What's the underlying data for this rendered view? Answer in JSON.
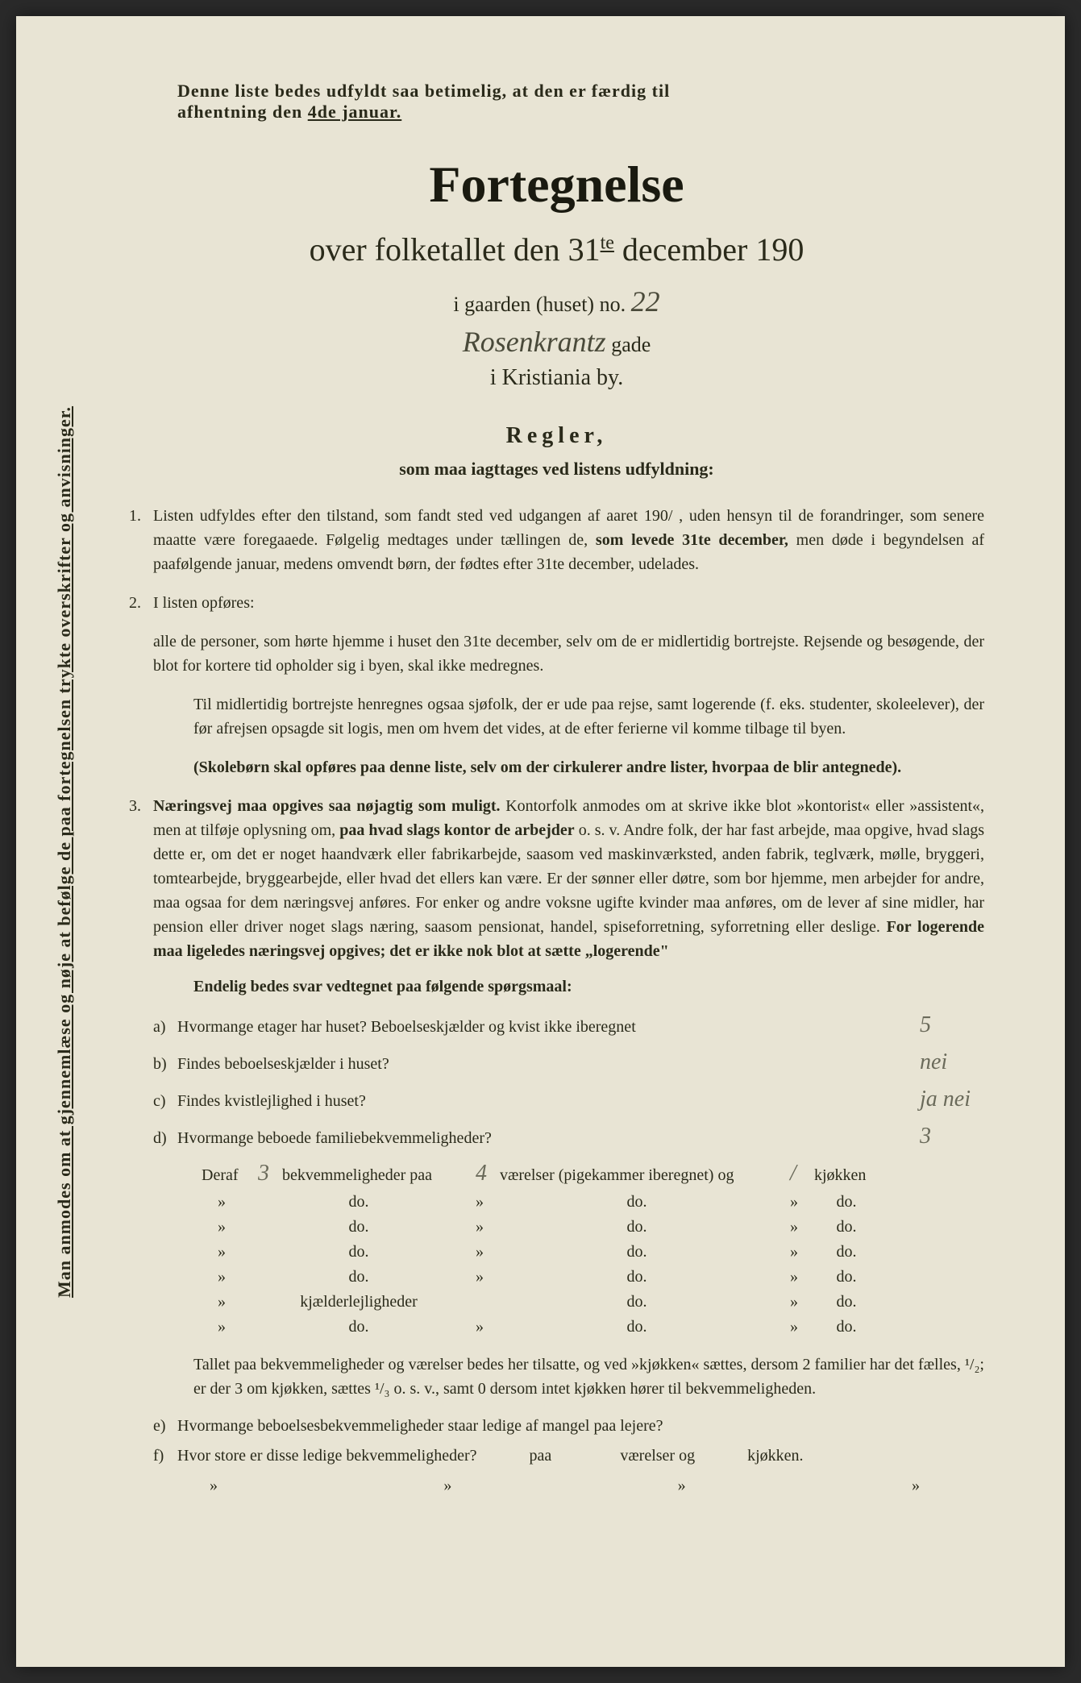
{
  "sideways": "Man anmodes om at gjennemlæse og nøje at befølge de paa fortegnelsen trykte overskrifter og anvisninger.",
  "topNotice": {
    "line1": "Denne liste bedes udfyldt saa betimelig, at den er færdig til",
    "line2a": "afhentning den ",
    "line2b": "4de januar."
  },
  "title": "Fortegnelse",
  "subtitle": {
    "prefix": "over folketallet den 31",
    "sup": "te",
    "suffix": " december 190"
  },
  "houseLine": {
    "prefix": "i gaarden (huset) no. ",
    "handwritten": "22"
  },
  "streetLine": {
    "handwritten": "Rosenkrantz",
    "suffix": " gade"
  },
  "cityLine": "i Kristiania by.",
  "rulesTitle": "Regler,",
  "rulesSubtitle": "som maa iagttages ved listens udfyldning:",
  "rules": [
    {
      "num": "1.",
      "text": "Listen udfyldes efter den tilstand, som fandt sted ved udgangen af aaret 190/ , uden hensyn til de forandringer, som senere maatte være foregaaede. Følgelig medtages under tællingen de, ",
      "bold1": "som levede 31te december,",
      "text2": " men døde i begyndelsen af paafølgende januar, medens omvendt børn, der fødtes efter 31te december, udelades."
    },
    {
      "num": "2.",
      "text": "I listen opføres:"
    }
  ],
  "rule2sub": {
    "text1": "alle de personer, ",
    "bold1": "som hørte hjemme i huset den 31te december, selv om de er midlertidig bortrejste.",
    "text2": " Rejsende og besøgende, der blot for kortere tid opholder sig i byen, skal ikke medregnes."
  },
  "rule2para2": "Til midlertidig bortrejste henregnes ogsaa sjøfolk, der er ude paa rejse, samt logerende (f. eks. studenter, skoleelever), der før afrejsen opsagde sit logis, men om hvem det vides, at de efter ferierne vil komme tilbage til byen.",
  "rule2bold": "(Skolebørn skal opføres paa denne liste, selv om der cirkulerer andre lister, hvorpaa de blir antegnede).",
  "rule3": {
    "num": "3.",
    "bold1": "Næringsvej maa opgives saa nøjagtig som muligt.",
    "text1": " Kontorfolk anmodes om at skrive ikke blot »kontorist« eller »assistent«, men at tilføje oplysning om, ",
    "bold2": "paa hvad slags kontor de arbejder",
    "text2": " o. s. v. Andre folk, der har fast arbejde, maa opgive, hvad slags dette er, om det er noget haandværk eller fabrikarbejde, saasom ved maskinværksted, anden fabrik, teglværk, mølle, bryggeri, tomtearbejde, bryggearbejde, eller hvad det ellers kan være. Er der sønner eller døtre, som bor hjemme, men arbejder for andre, maa ogsaa for dem næringsvej anføres. For enker og andre voksne ugifte kvinder maa anføres, om de lever af sine midler, har pension eller driver noget slags næring, saasom pensionat, handel, spiseforretning, syforretning eller deslige. ",
    "bold3": "For logerende maa ligeledes næringsvej opgives; det er ikke nok blot at sætte „logerende\""
  },
  "questionsTitle": "Endelig bedes svar vedtegnet paa følgende spørgsmaal:",
  "questions": [
    {
      "label": "a)",
      "text": "Hvormange ",
      "bold": "etager",
      "text2": " har huset? Beboelseskjælder og kvist ",
      "bold2": "ikke iberegnet",
      "answer": "5"
    },
    {
      "label": "b)",
      "text": "Findes beboelseskjælder i huset?",
      "answer": "nei"
    },
    {
      "label": "c)",
      "text": "Findes kvistlejlighed i huset?",
      "answer": "ja nei"
    },
    {
      "label": "d)",
      "text": "Hvormange ",
      "bold": "beboede",
      "text2": " familiebekvemmeligheder?",
      "answer": "3"
    }
  ],
  "tableHeader": {
    "deraf": "Deraf",
    "hw1": "3",
    "bekvem": "bekvemmeligheder paa",
    "hw2": "4",
    "vaer": "værelser (pigekammer iberegnet) og",
    "hw3": "/",
    "kjok": "kjøkken"
  },
  "tableRows": [
    {
      "c1": "»",
      "c2": "do.",
      "c3": "»",
      "c4": "do.",
      "c5": "»",
      "c6": "do."
    },
    {
      "c1": "»",
      "c2": "do.",
      "c3": "»",
      "c4": "do.",
      "c5": "»",
      "c6": "do."
    },
    {
      "c1": "»",
      "c2": "do.",
      "c3": "»",
      "c4": "do.",
      "c5": "»",
      "c6": "do."
    },
    {
      "c1": "»",
      "c2": "do.",
      "c3": "»",
      "c4": "do.",
      "c5": "»",
      "c6": "do."
    },
    {
      "c1": "»",
      "c2": "kjælderlejligheder",
      "c3": "",
      "c4": "do.",
      "c5": "»",
      "c6": "do."
    },
    {
      "c1": "»",
      "c2": "do.",
      "c3": "»",
      "c4": "do.",
      "c5": "»",
      "c6": "do."
    }
  ],
  "bottomNote": "Tallet paa bekvemmeligheder og værelser bedes her tilsatte, og ved »kjøkken« sættes, dersom 2 familier har det fælles, ¹/₂; er der 3 om kjøkken, sættes ¹/₃ o. s. v., samt 0 dersom intet kjøkken hører til bekvemmeligheden.",
  "questionE": {
    "label": "e)",
    "text": "Hvormange beboelsesbekvemmeligheder staar ledige af mangel paa lejere?"
  },
  "questionF": {
    "label": "f)",
    "text": "Hvor store er disse ledige bekvemmeligheder?",
    "c1": "paa",
    "c2": "værelser og",
    "c3": "kjøkken."
  },
  "finalRow": {
    "c1": "»",
    "c2": "»",
    "c3": "»",
    "c4": "»"
  }
}
